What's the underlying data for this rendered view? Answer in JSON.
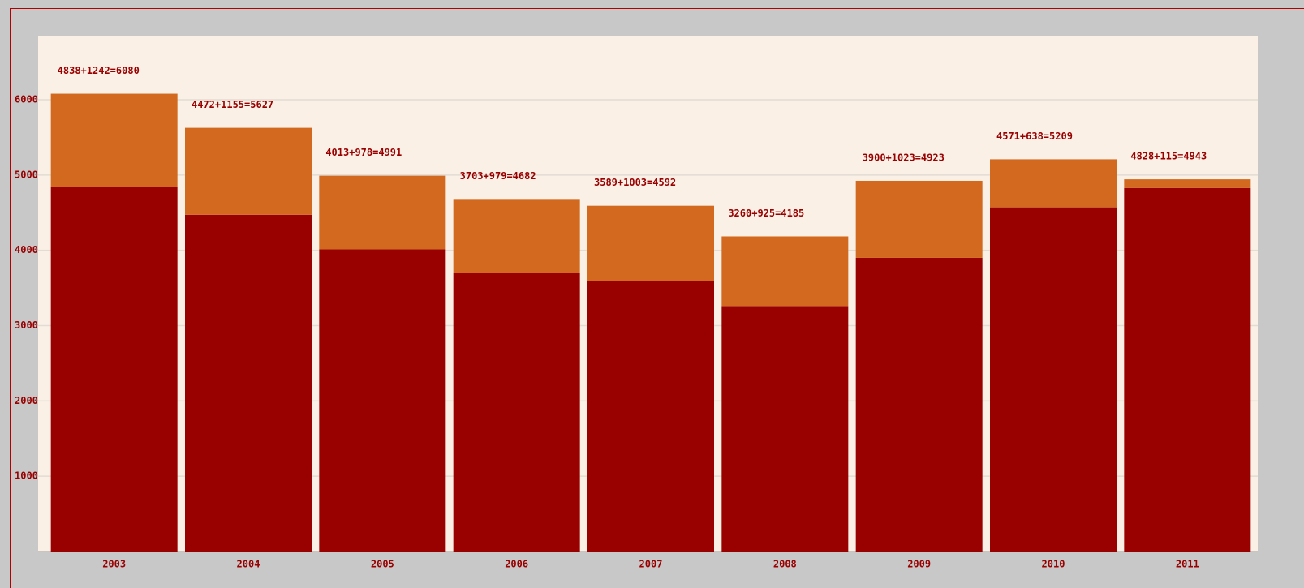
{
  "chart_data": {
    "type": "stacked_bar",
    "categories": [
      "2003",
      "2004",
      "2005",
      "2006",
      "2007",
      "2008",
      "2009",
      "2010",
      "2011"
    ],
    "series": [
      {
        "color": "#990000",
        "values": [
          4838,
          4472,
          4013,
          3703,
          3589,
          3260,
          3900,
          4571,
          4828
        ]
      },
      {
        "color": "#d2691e",
        "values": [
          1242,
          1155,
          978,
          979,
          1003,
          925,
          1023,
          638,
          115
        ]
      }
    ],
    "bar_labels": [
      "4838+1242=6080",
      "4472+1155=5627",
      "4013+978=4991",
      "3703+979=4682",
      "3589+1003=4592",
      "3260+925=4185",
      "3900+1023=4923",
      "4571+638=5209",
      "4828+115=4943"
    ],
    "ylim": [
      0,
      6840
    ],
    "yticks": [
      1000,
      2000,
      3000,
      4000,
      5000,
      6000
    ],
    "grid": true
  }
}
